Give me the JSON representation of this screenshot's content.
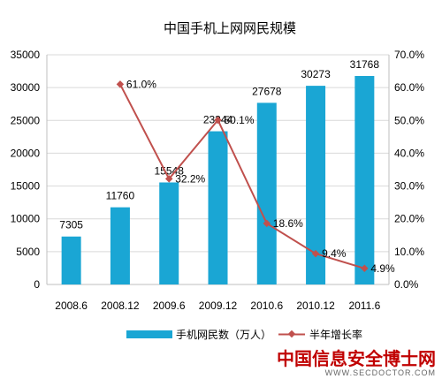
{
  "chart_data": {
    "type": "bar",
    "title": "中国手机上网网民规模",
    "categories": [
      "2008.6",
      "2008.12",
      "2009.6",
      "2009.12",
      "2010.6",
      "2010.12",
      "2011.6"
    ],
    "series": [
      {
        "name": "手机网民数（万人）",
        "type": "bar",
        "axis": "left",
        "values": [
          7305,
          11760,
          15548,
          23344,
          27678,
          30273,
          31768
        ],
        "labels": [
          "7305",
          "11760",
          "15548",
          "23344",
          "27678",
          "30273",
          "31768"
        ],
        "color": "#1aa6d4"
      },
      {
        "name": "半年增长率",
        "type": "line",
        "axis": "right",
        "values": [
          null,
          61.0,
          32.2,
          50.1,
          18.6,
          9.4,
          4.9
        ],
        "labels": [
          "",
          "61.0%",
          "32.2%",
          "50.1%",
          "18.6%",
          "9.4%",
          "4.9%"
        ],
        "color": "#c0504d"
      }
    ],
    "y_left": {
      "ylim": [
        0,
        35000
      ],
      "ticks": [
        "0",
        "5000",
        "10000",
        "15000",
        "20000",
        "25000",
        "30000",
        "35000"
      ]
    },
    "y_right": {
      "ylim": [
        0,
        70
      ],
      "ticks": [
        "0.0%",
        "10.0%",
        "20.0%",
        "30.0%",
        "40.0%",
        "50.0%",
        "60.0%",
        "70.0%"
      ]
    },
    "grid": true,
    "legend_position": "bottom"
  },
  "watermark": {
    "logo_text": "中国信息安全博士网",
    "url_text": "WWW.SECDOCTOR.COM"
  }
}
